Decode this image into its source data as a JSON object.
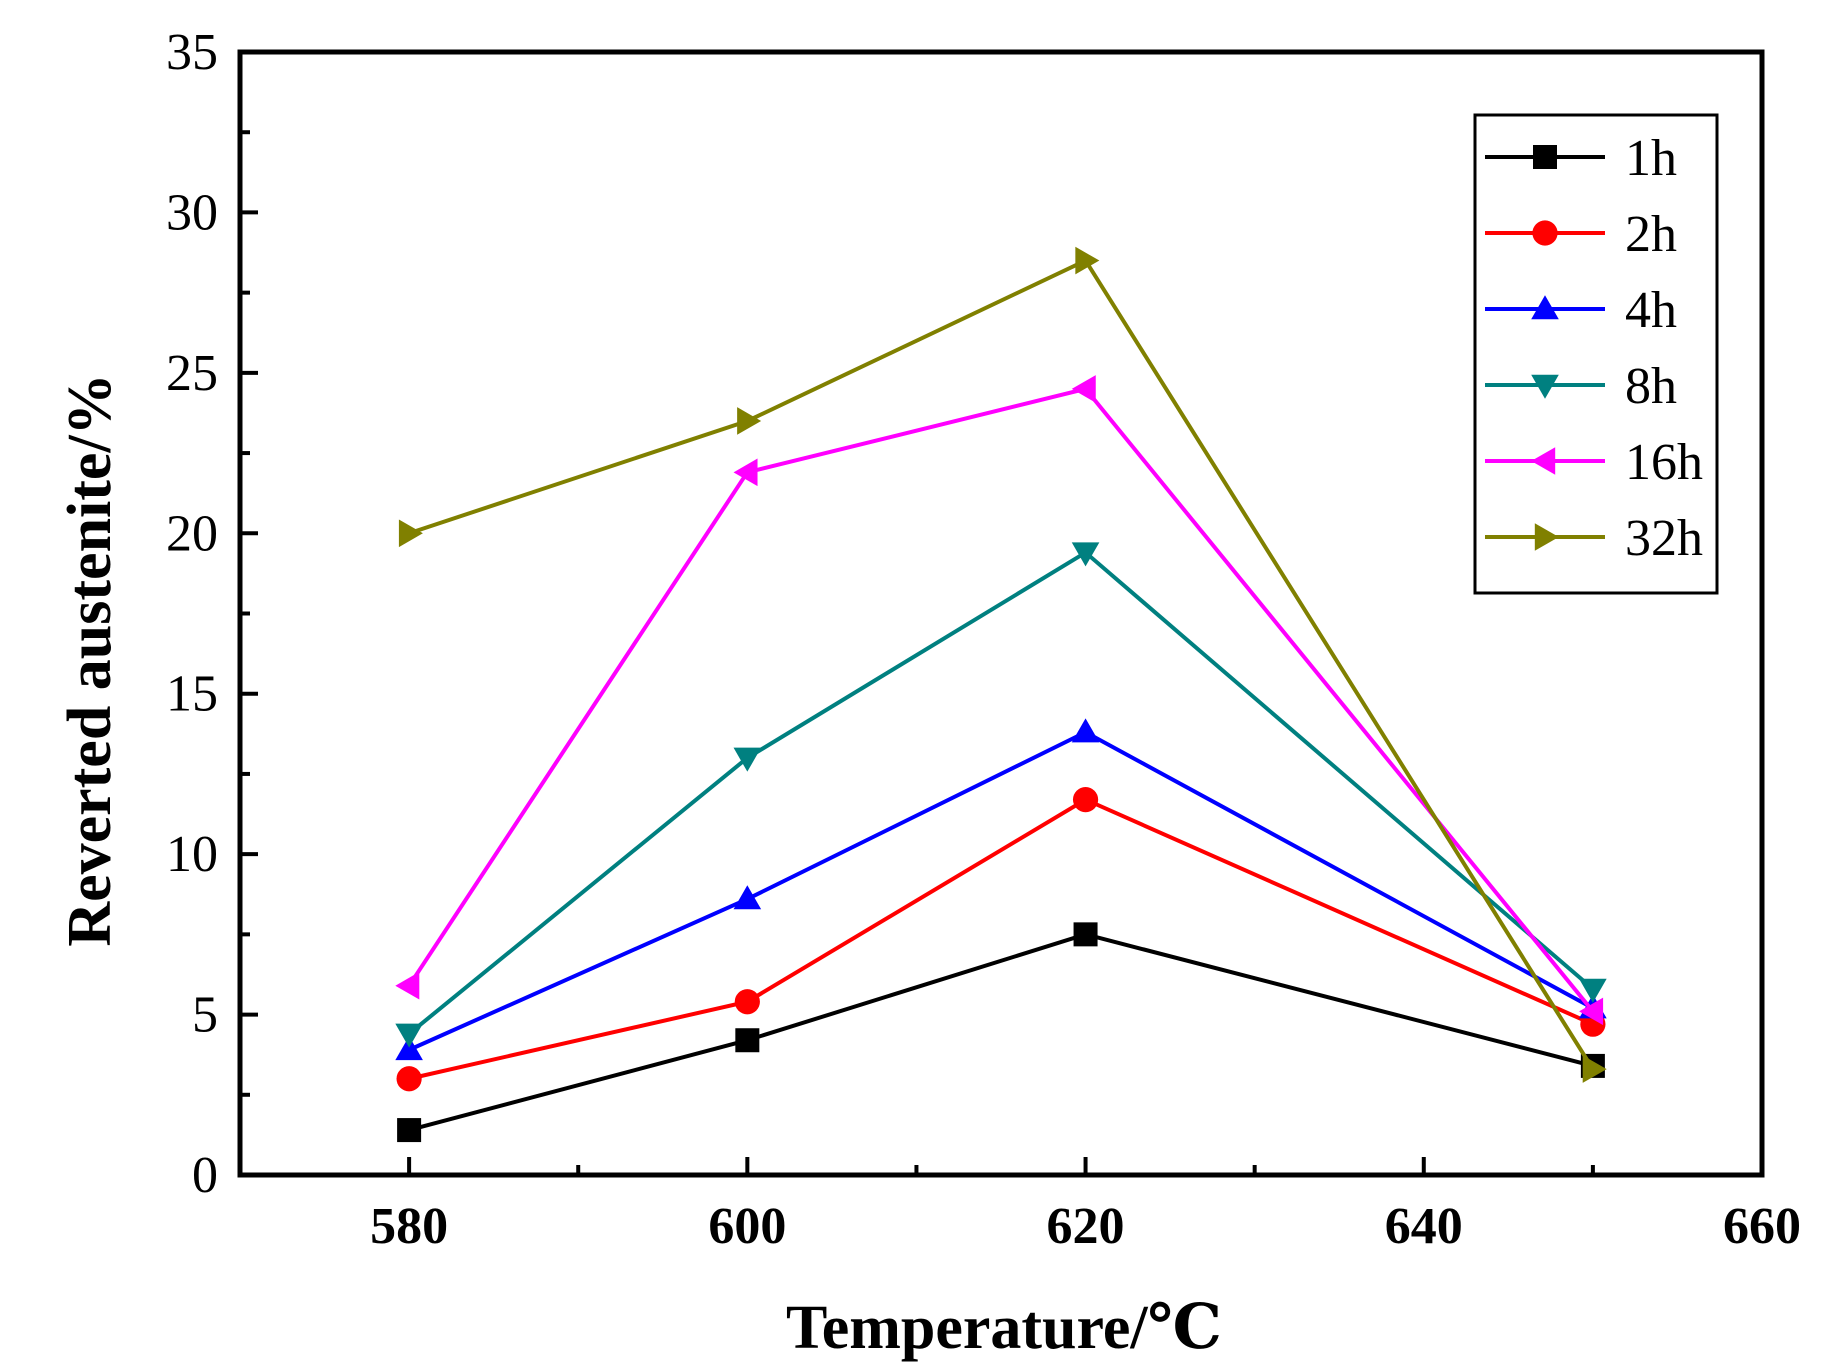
{
  "chart_data": {
    "type": "line",
    "title": "",
    "xlabel": "Temperature/℃",
    "ylabel": "Reverted austenite/%",
    "xlim": [
      570,
      660
    ],
    "ylim": [
      0,
      35
    ],
    "x_ticks": [
      580,
      600,
      620,
      640,
      660
    ],
    "y_ticks": [
      0,
      5,
      10,
      15,
      20,
      25,
      30,
      35
    ],
    "legend_position": "top-right",
    "grid": false,
    "x": [
      580,
      600,
      620,
      650
    ],
    "series": [
      {
        "name": "1h",
        "values": [
          1.4,
          4.2,
          7.5,
          3.4
        ],
        "color": "#000000",
        "marker": "square"
      },
      {
        "name": "2h",
        "values": [
          3.0,
          5.4,
          11.7,
          4.7
        ],
        "color": "#ff0000",
        "marker": "circle"
      },
      {
        "name": "4h",
        "values": [
          3.9,
          8.6,
          13.8,
          5.2
        ],
        "color": "#0000ff",
        "marker": "triangle-up"
      },
      {
        "name": "8h",
        "values": [
          4.4,
          13.0,
          19.4,
          5.8
        ],
        "color": "#008080",
        "marker": "triangle-down"
      },
      {
        "name": "16h",
        "values": [
          5.9,
          21.9,
          24.5,
          5.1
        ],
        "color": "#ff00ff",
        "marker": "triangle-left"
      },
      {
        "name": "32h",
        "values": [
          20.0,
          23.5,
          28.5,
          3.3
        ],
        "color": "#808000",
        "marker": "triangle-right"
      }
    ]
  }
}
